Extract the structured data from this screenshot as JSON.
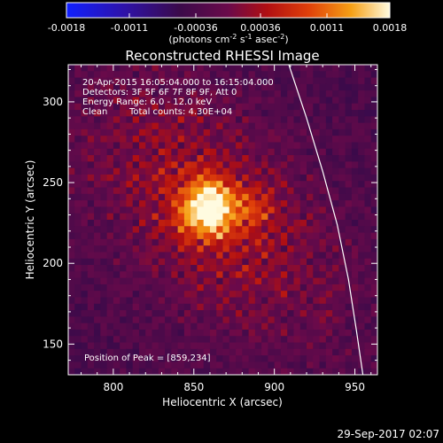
{
  "chart_data": {
    "type": "heatmap",
    "title": "Reconstructed RHESSI Image",
    "colorbar": {
      "min": -0.0018,
      "max": 0.0018,
      "tick_labels": [
        "-0.0018",
        "-0.0011",
        "-0.00036",
        "0.00036",
        "0.0011",
        "0.0018"
      ],
      "tick_values": [
        -0.0018,
        -0.0011,
        -0.00036,
        0.00036,
        0.0011,
        0.0018
      ],
      "label_parts": [
        "(photons cm",
        "-2",
        " s",
        "-1",
        " asec",
        "-2",
        ")"
      ]
    },
    "xlabel": "Heliocentric X (arcsec)",
    "ylabel": "Heliocentric Y (arcsec)",
    "xlim": [
      772,
      964
    ],
    "ylim": [
      131,
      323
    ],
    "xticks": [
      800,
      850,
      900,
      950
    ],
    "yticks": [
      150,
      200,
      250,
      300
    ],
    "peak": {
      "x": 859,
      "y": 234
    },
    "source_width_arcsec": 12,
    "limb_arc": [
      [
        909,
        323
      ],
      [
        920,
        290
      ],
      [
        930,
        257
      ],
      [
        939,
        224
      ],
      [
        946,
        190
      ],
      [
        951,
        158
      ],
      [
        955,
        131
      ]
    ],
    "annotations": {
      "time": "20-Apr-2015 16:05:04.000 to 16:15:04.000",
      "detectors": "Detectors: 3F 5F 6F 7F 8F 9F, Att 0",
      "energy": "Energy Range: 6.0 - 12.0 keV",
      "clean_label": "Clean",
      "total_counts": "Total counts: 4.30E+04",
      "peak_position": "Position of Peak = [859,234]"
    }
  },
  "footer": {
    "date": "29-Sep-2017 02:07"
  }
}
